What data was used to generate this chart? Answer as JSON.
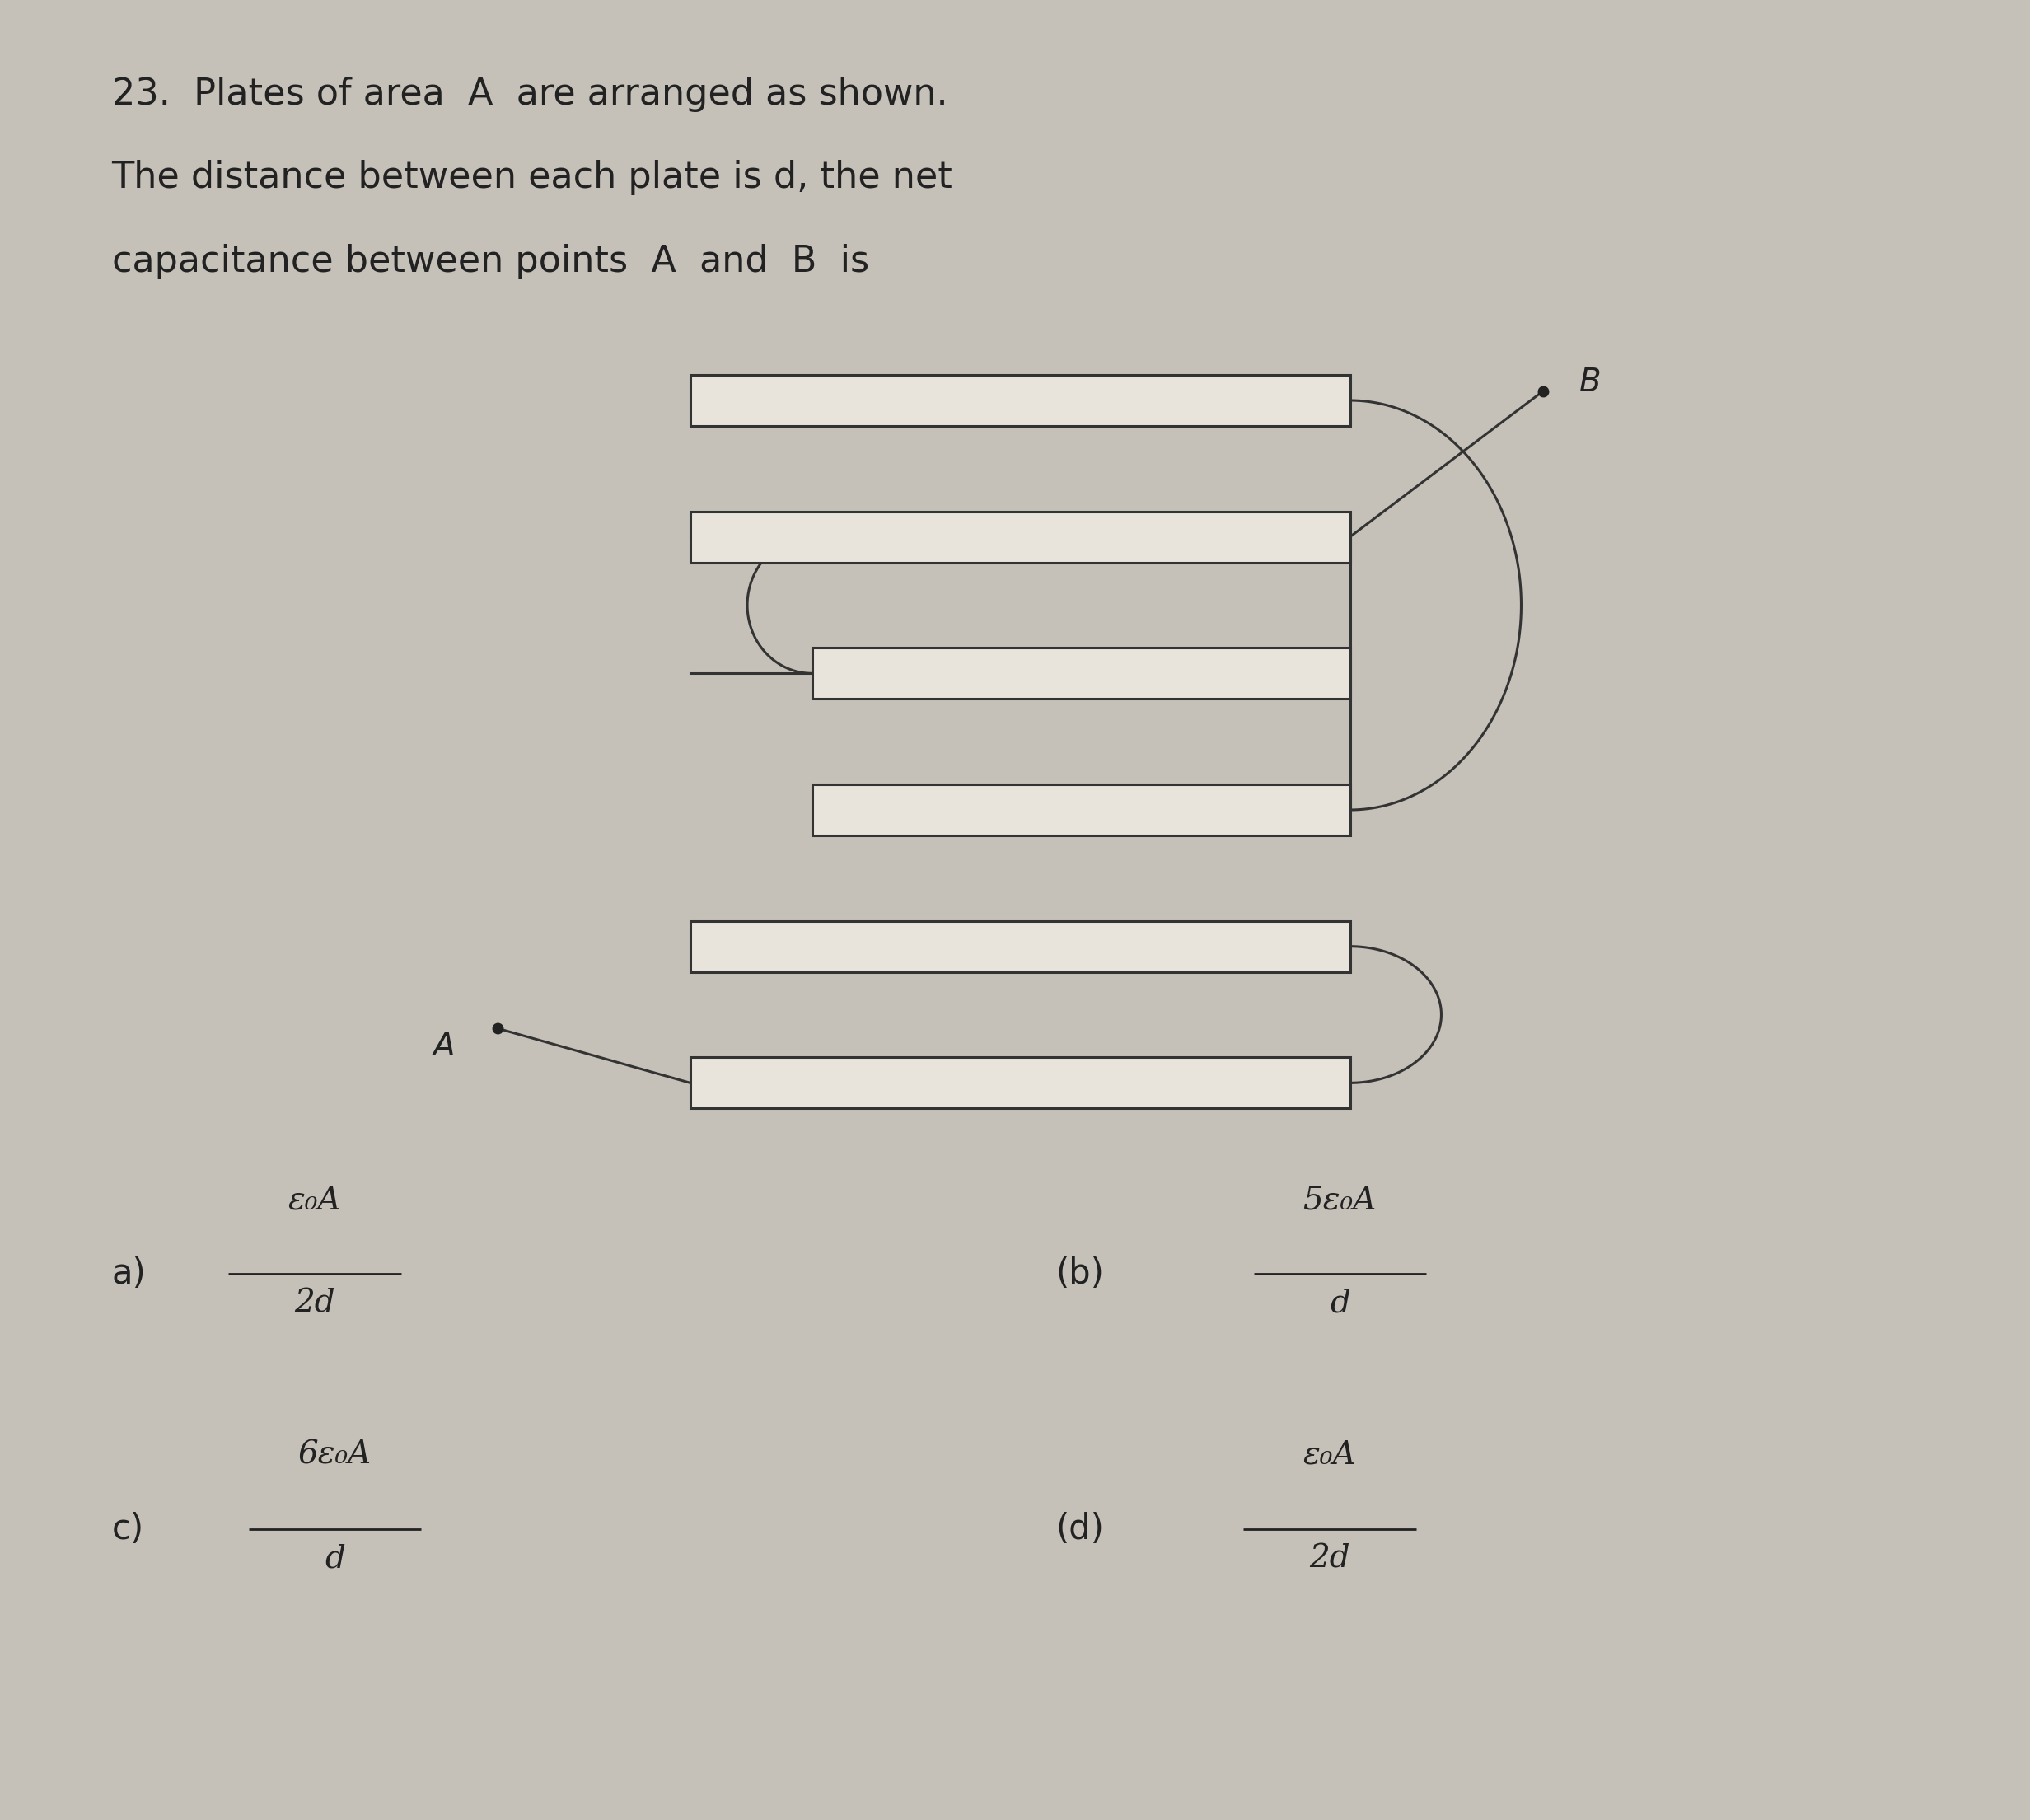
{
  "bg_color": "#c5c1b8",
  "title_line1": "23.  Plates of area  A  are arranged as shown.",
  "title_line2": "The distance between each plate is d, the net",
  "title_line3": "capacitance between points  A  and  B  is",
  "text_color": "#222222",
  "plate_color": "#e8e4dc",
  "plate_edge_color": "#333333",
  "wire_color": "#333333",
  "num_plates": 6,
  "plate_lw": 2.2,
  "wire_lw": 2.2,
  "answer_a_label": "a)",
  "answer_a_num": "ε₀A",
  "answer_a_den": "2d",
  "answer_b_label": "(b)",
  "answer_b_num": "5ε₀A",
  "answer_b_den": "d",
  "answer_c_label": "c)",
  "answer_c_num": "6ε₀A",
  "answer_c_den": "d",
  "answer_d_label": "(d)",
  "answer_d_num": "ε₀A",
  "answer_d_den": "2d"
}
